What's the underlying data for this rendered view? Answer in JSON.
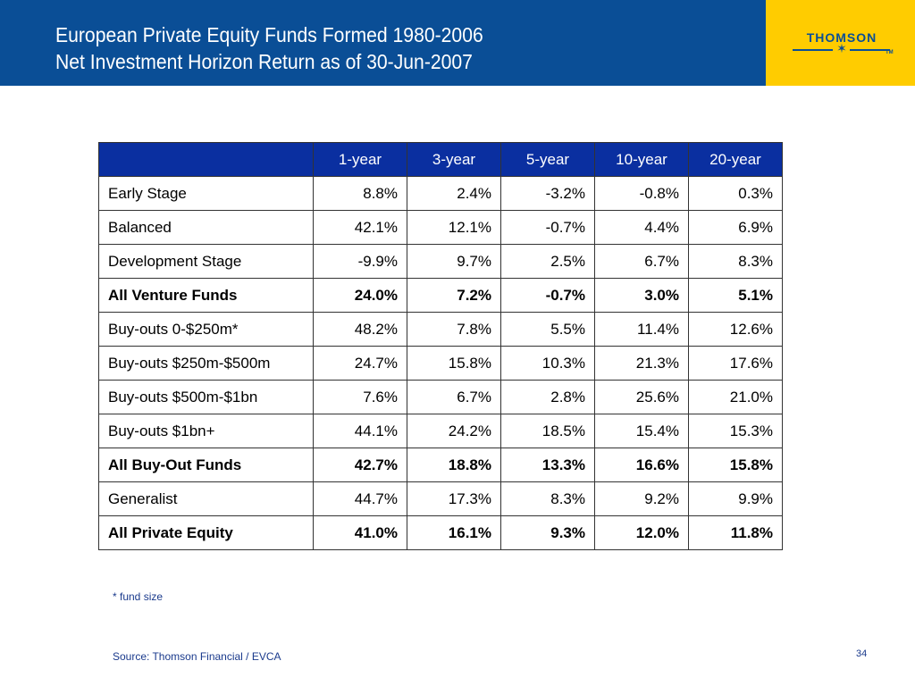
{
  "header": {
    "title_line1": "European Private Equity Funds Formed 1980-2006",
    "title_line2": "Net Investment Horizon Return as of 30-Jun-2007"
  },
  "logo": {
    "text": "THOMSON",
    "tm": "TM",
    "brand_color": "#0a4e96",
    "box_color": "#ffcc00"
  },
  "table": {
    "columns": [
      "",
      "1-year",
      "3-year",
      "5-year",
      "10-year",
      "20-year"
    ],
    "rows": [
      {
        "label": "Early Stage",
        "values": [
          "8.8%",
          "2.4%",
          "-3.2%",
          "-0.8%",
          "0.3%"
        ],
        "bold": false
      },
      {
        "label": "Balanced",
        "values": [
          "42.1%",
          "12.1%",
          "-0.7%",
          "4.4%",
          "6.9%"
        ],
        "bold": false
      },
      {
        "label": "Development Stage",
        "values": [
          "-9.9%",
          "9.7%",
          "2.5%",
          "6.7%",
          "8.3%"
        ],
        "bold": false
      },
      {
        "label": "All Venture Funds",
        "values": [
          "24.0%",
          "7.2%",
          "-0.7%",
          "3.0%",
          "5.1%"
        ],
        "bold": true
      },
      {
        "label": "Buy-outs 0-$250m*",
        "values": [
          "48.2%",
          "7.8%",
          "5.5%",
          "11.4%",
          "12.6%"
        ],
        "bold": false
      },
      {
        "label": "Buy-outs $250m-$500m",
        "values": [
          "24.7%",
          "15.8%",
          "10.3%",
          "21.3%",
          "17.6%"
        ],
        "bold": false
      },
      {
        "label": "Buy-outs $500m-$1bn",
        "values": [
          "7.6%",
          "6.7%",
          "2.8%",
          "25.6%",
          "21.0%"
        ],
        "bold": false
      },
      {
        "label": "Buy-outs $1bn+",
        "values": [
          "44.1%",
          "24.2%",
          "18.5%",
          "15.4%",
          "15.3%"
        ],
        "bold": false
      },
      {
        "label": "All Buy-Out Funds",
        "values": [
          "42.7%",
          "18.8%",
          "13.3%",
          "16.6%",
          "15.8%"
        ],
        "bold": true
      },
      {
        "label": "Generalist",
        "values": [
          "44.7%",
          "17.3%",
          "8.3%",
          "9.2%",
          "9.9%"
        ],
        "bold": false
      },
      {
        "label": "All Private Equity",
        "values": [
          "41.0%",
          "16.1%",
          "9.3%",
          "12.0%",
          "11.8%"
        ],
        "bold": true
      }
    ]
  },
  "footnote": "* fund size",
  "source": "Source: Thomson Financial / EVCA",
  "page_number": "34"
}
